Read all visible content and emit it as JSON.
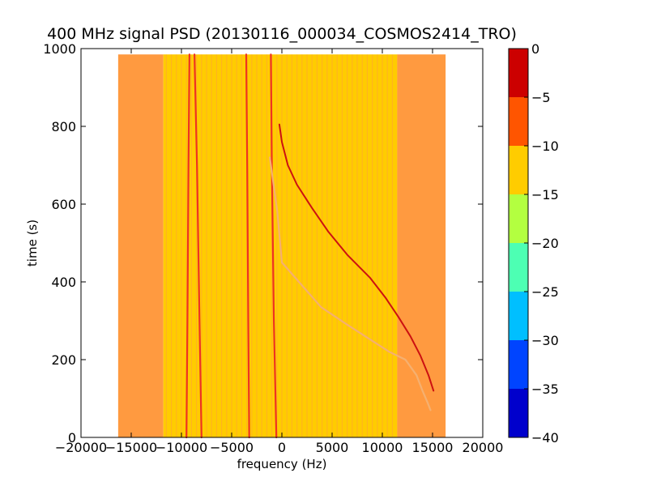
{
  "chart_data": {
    "type": "heatmap",
    "title": "400 MHz signal PSD (20130116_000034_COSMOS2414_TRO)",
    "xlabel": "frequency (Hz)",
    "ylabel": "time (s)",
    "xlim": [
      -20000,
      20000
    ],
    "ylim": [
      0,
      1000
    ],
    "xticks": [
      -20000,
      -15000,
      -10000,
      -5000,
      0,
      5000,
      10000,
      15000,
      20000
    ],
    "yticks": [
      0,
      200,
      400,
      600,
      800,
      1000
    ],
    "xtick_labels": [
      "−20000",
      "−15000",
      "−10000",
      "−5000",
      "0",
      "5000",
      "10000",
      "15000",
      "20000"
    ],
    "ytick_labels": [
      "0",
      "200",
      "400",
      "600",
      "800",
      "1000"
    ],
    "grid": false,
    "data_extent": {
      "x": [
        -16300,
        16300
      ],
      "y": [
        0,
        985
      ]
    },
    "colorbar": {
      "levels": [
        -40,
        -35,
        -30,
        -25,
        -20,
        -15,
        -10,
        -5,
        0
      ],
      "tick_labels": [
        "−40",
        "−35",
        "−30",
        "−25",
        "−20",
        "−15",
        "−10",
        "−5",
        "0"
      ],
      "colors": [
        "#0000cc",
        "#0044ff",
        "#00bfff",
        "#4dffb3",
        "#b3ff40",
        "#ffcc00",
        "#ff5500",
        "#cc0000"
      ]
    },
    "regions": [
      {
        "x": [
          -16300,
          -11800
        ],
        "level": "-10 to -5",
        "color": "#ff9a40"
      },
      {
        "x": [
          -11800,
          11500
        ],
        "level": "-15 to -10",
        "color": "#ffcc00"
      },
      {
        "x": [
          11500,
          16300
        ],
        "level": "-10 to -5",
        "color": "#ff9a40"
      }
    ],
    "series": [
      {
        "x": [
          -9200,
          -9300,
          -9400,
          -9500
        ],
        "y": [
          985,
          700,
          300,
          0
        ],
        "color": "#ee3322"
      },
      {
        "x": [
          -8700,
          -8450,
          -8200,
          -8000
        ],
        "y": [
          985,
          700,
          300,
          0
        ],
        "color": "#ee3322"
      },
      {
        "x": [
          -3550,
          -3450,
          -3350,
          -3250
        ],
        "y": [
          985,
          700,
          300,
          0
        ],
        "color": "#ee3322"
      },
      {
        "x": [
          -1100,
          -1000,
          -800,
          -550
        ],
        "y": [
          985,
          700,
          300,
          0
        ],
        "color": "#ee3322"
      },
      {
        "x": [
          -1200,
          -450,
          0,
          3900,
          6500,
          8600,
          10700,
          12300,
          13400,
          14000,
          14500,
          14800
        ],
        "y": [
          720,
          580,
          450,
          335,
          290,
          255,
          220,
          200,
          160,
          120,
          90,
          70
        ],
        "color": "#f5b070"
      },
      {
        "x": [
          -250,
          0,
          600,
          1500,
          3000,
          4600,
          6500,
          8800,
          10300,
          11600,
          12800,
          13800,
          14600,
          15100
        ],
        "y": [
          805,
          760,
          700,
          650,
          590,
          530,
          470,
          410,
          360,
          310,
          260,
          210,
          160,
          120
        ],
        "color": "#cc1111"
      }
    ]
  }
}
